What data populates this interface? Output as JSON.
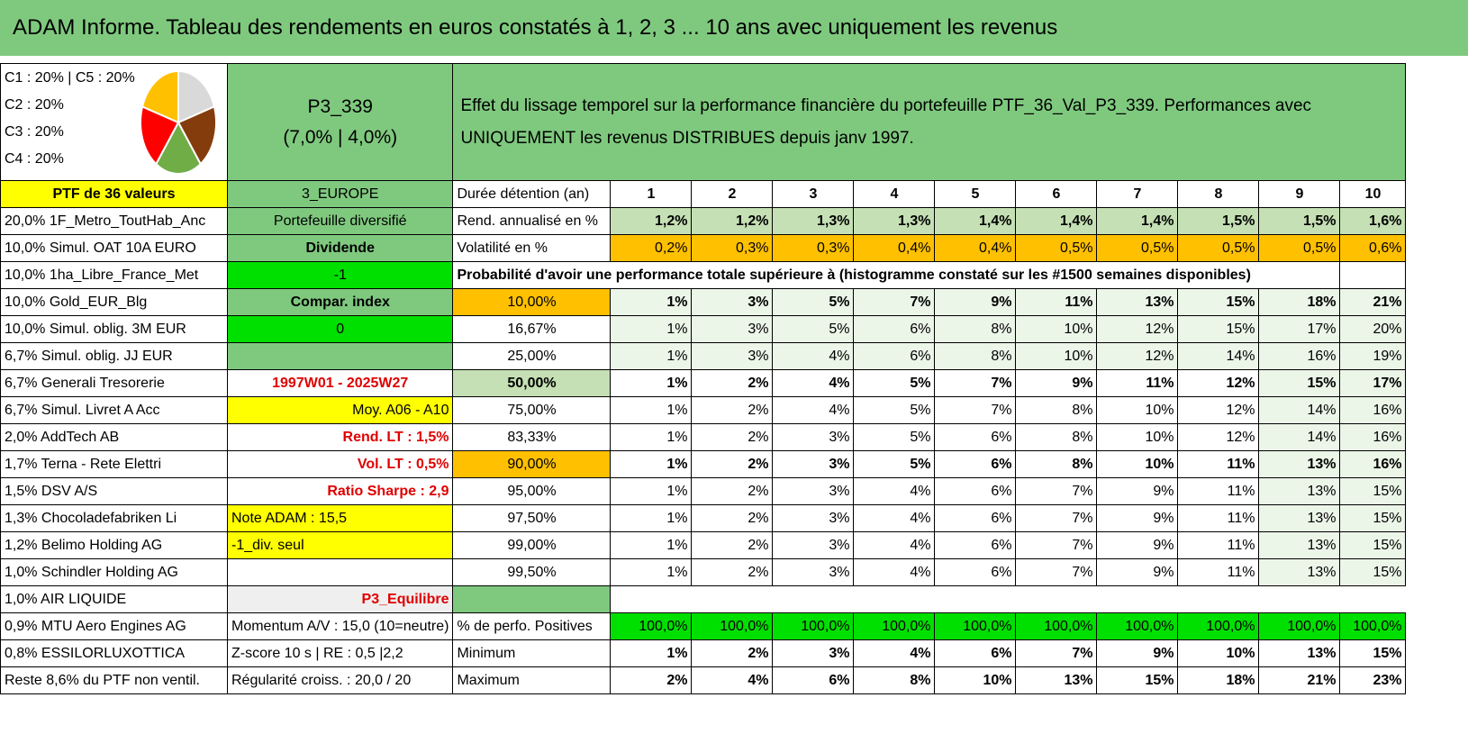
{
  "title": "ADAM Informe. Tableau des rendements en euros constatés à 1, 2, 3 ... 10 ans avec uniquement les revenus",
  "allocation": [
    "C1 : 20% | C5 : 20%",
    "C2 : 20%",
    "C3 : 20%",
    "C4 : 20%"
  ],
  "pie_colors": [
    "#d9d9d9",
    "#843c0c",
    "#70ad47",
    "#ff0000",
    "#ffc000"
  ],
  "portfolio_code": "P3_339",
  "portfolio_params": "(7,0% | 4,0%)",
  "description": "Effet du lissage temporel sur la performance financière du portefeuille PTF_36_Val_P3_339. Performances avec UNIQUEMENT les revenus DISTRIBUES depuis janv 1997.",
  "ptf_label": "PTF de 36 valeurs",
  "region": "3_EUROPE",
  "duration_label": "Durée détention (an)",
  "years": [
    "1",
    "2",
    "3",
    "4",
    "5",
    "6",
    "7",
    "8",
    "9",
    "10"
  ],
  "rend_label": "Rend. annualisé en %",
  "rend_values": [
    "1,2%",
    "1,2%",
    "1,3%",
    "1,3%",
    "1,4%",
    "1,4%",
    "1,4%",
    "1,5%",
    "1,5%",
    "1,6%"
  ],
  "vol_label": "Volatilité en %",
  "vol_values": [
    "0,2%",
    "0,3%",
    "0,3%",
    "0,4%",
    "0,4%",
    "0,5%",
    "0,5%",
    "0,5%",
    "0,5%",
    "0,6%"
  ],
  "prob_label": "Probabilité d'avoir une performance totale supérieure à (histogramme constaté sur les #1500 semaines disponibles)",
  "holdings": [
    "20,0% 1F_Metro_ToutHab_Anc",
    "10,0% Simul. OAT 10A EURO",
    "10,0% 1ha_Libre_France_Met",
    "10,0% Gold_EUR_Blg",
    "10,0% Simul. oblig. 3M EUR",
    "6,7% Simul. oblig. JJ EUR",
    "6,7% Generali Tresorerie",
    "6,7% Simul. Livret A Acc",
    "2,0% AddTech AB",
    "1,7% Terna - Rete Elettri",
    "1,5% DSV A/S",
    "1,3% Chocoladefabriken Li",
    "1,2% Belimo Holding AG",
    "1,0% Schindler Holding AG",
    "1,0% AIR LIQUIDE",
    "0,9% MTU Aero Engines AG",
    "0,8% ESSILORLUXOTTICA",
    "Reste 8,6% du PTF non ventil."
  ],
  "side_info": {
    "diversified": "Portefeuille diversifié",
    "dividend": "Dividende",
    "minus_one": "-1",
    "compar_index": "Compar. index",
    "zero": "0",
    "period": "1997W01 - 2025W27",
    "moy": "Moy. A06 - A10",
    "rend_lt": "Rend. LT : 1,5%",
    "vol_lt": "Vol. LT : 0,5%",
    "sharpe": "Ratio Sharpe : 2,9",
    "note_adam": "Note ADAM : 15,5",
    "div_seul": "-1_div. seul",
    "profile": "P3_Equilibre",
    "momentum": "Momentum A/V : 15,0 (10=neutre)",
    "zscore": "Z-score 10 s | RE : 0,5 |2,2",
    "regularite": "Régularité croiss. : 20,0 / 20"
  },
  "quantiles": [
    {
      "p": "10,00%",
      "v": [
        "1%",
        "3%",
        "5%",
        "7%",
        "9%",
        "11%",
        "13%",
        "15%",
        "18%",
        "21%"
      ]
    },
    {
      "p": "16,67%",
      "v": [
        "1%",
        "3%",
        "5%",
        "6%",
        "8%",
        "10%",
        "12%",
        "15%",
        "17%",
        "20%"
      ]
    },
    {
      "p": "25,00%",
      "v": [
        "1%",
        "3%",
        "4%",
        "6%",
        "8%",
        "10%",
        "12%",
        "14%",
        "16%",
        "19%"
      ]
    },
    {
      "p": "50,00%",
      "v": [
        "1%",
        "2%",
        "4%",
        "5%",
        "7%",
        "9%",
        "11%",
        "12%",
        "15%",
        "17%"
      ]
    },
    {
      "p": "75,00%",
      "v": [
        "1%",
        "2%",
        "4%",
        "5%",
        "7%",
        "8%",
        "10%",
        "12%",
        "14%",
        "16%"
      ]
    },
    {
      "p": "83,33%",
      "v": [
        "1%",
        "2%",
        "3%",
        "5%",
        "6%",
        "8%",
        "10%",
        "12%",
        "14%",
        "16%"
      ]
    },
    {
      "p": "90,00%",
      "v": [
        "1%",
        "2%",
        "3%",
        "5%",
        "6%",
        "8%",
        "10%",
        "11%",
        "13%",
        "16%"
      ]
    },
    {
      "p": "95,00%",
      "v": [
        "1%",
        "2%",
        "3%",
        "4%",
        "6%",
        "7%",
        "9%",
        "11%",
        "13%",
        "15%"
      ]
    },
    {
      "p": "97,50%",
      "v": [
        "1%",
        "2%",
        "3%",
        "4%",
        "6%",
        "7%",
        "9%",
        "11%",
        "13%",
        "15%"
      ]
    },
    {
      "p": "99,00%",
      "v": [
        "1%",
        "2%",
        "3%",
        "4%",
        "6%",
        "7%",
        "9%",
        "11%",
        "13%",
        "15%"
      ]
    },
    {
      "p": "99,50%",
      "v": [
        "1%",
        "2%",
        "3%",
        "4%",
        "6%",
        "7%",
        "9%",
        "11%",
        "13%",
        "15%"
      ]
    }
  ],
  "pos_label": "% de perfo. Positives",
  "pos_values": [
    "100,0%",
    "100,0%",
    "100,0%",
    "100,0%",
    "100,0%",
    "100,0%",
    "100,0%",
    "100,0%",
    "100,0%",
    "100,0%"
  ],
  "min_label": "Minimum",
  "min_values": [
    "1%",
    "2%",
    "3%",
    "4%",
    "6%",
    "7%",
    "9%",
    "10%",
    "13%",
    "15%"
  ],
  "max_label": "Maximum",
  "max_values": [
    "2%",
    "4%",
    "6%",
    "8%",
    "10%",
    "13%",
    "15%",
    "18%",
    "21%",
    "23%"
  ]
}
